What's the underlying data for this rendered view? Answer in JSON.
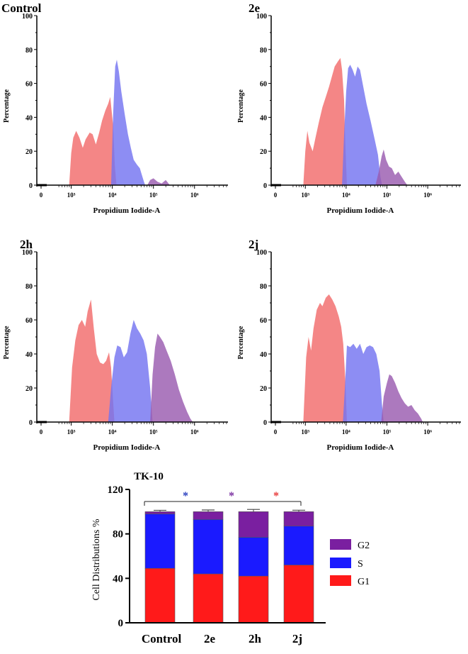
{
  "chart_data": [
    {
      "type": "area",
      "panel": "Control",
      "title": "Control",
      "xlabel": "Propidium Iodide-A",
      "ylabel": "Percentage",
      "x_scale": "log10",
      "x_ticks": [
        "0",
        "10³",
        "10⁴",
        "10⁵",
        "10⁶"
      ],
      "y_ticks": [
        "0",
        "20",
        "40",
        "60",
        "80",
        "100"
      ],
      "ylim": [
        0,
        100
      ],
      "series": [
        {
          "name": "G1",
          "color": "#f26b6b",
          "points": [
            [
              2.95,
              0
            ],
            [
              3.0,
              19
            ],
            [
              3.05,
              28
            ],
            [
              3.12,
              32
            ],
            [
              3.2,
              28
            ],
            [
              3.28,
              22
            ],
            [
              3.35,
              27
            ],
            [
              3.45,
              31
            ],
            [
              3.52,
              30
            ],
            [
              3.6,
              24
            ],
            [
              3.68,
              31
            ],
            [
              3.75,
              38
            ],
            [
              3.83,
              44
            ],
            [
              3.9,
              48
            ],
            [
              3.95,
              52
            ],
            [
              4.02,
              35
            ],
            [
              4.06,
              12
            ],
            [
              4.1,
              0
            ]
          ]
        },
        {
          "name": "S",
          "color": "#7474f0",
          "points": [
            [
              3.97,
              0
            ],
            [
              4.02,
              42
            ],
            [
              4.07,
              70
            ],
            [
              4.11,
              74
            ],
            [
              4.16,
              67
            ],
            [
              4.22,
              55
            ],
            [
              4.3,
              42
            ],
            [
              4.38,
              30
            ],
            [
              4.45,
              22
            ],
            [
              4.52,
              15
            ],
            [
              4.6,
              12
            ],
            [
              4.67,
              10
            ],
            [
              4.72,
              6
            ],
            [
              4.77,
              2
            ],
            [
              4.8,
              0
            ]
          ]
        },
        {
          "name": "G2",
          "color": "#9a5bb0",
          "points": [
            [
              4.85,
              0
            ],
            [
              4.92,
              3
            ],
            [
              5.0,
              4
            ],
            [
              5.1,
              2
            ],
            [
              5.2,
              1
            ],
            [
              5.3,
              3
            ],
            [
              5.4,
              0
            ]
          ]
        }
      ]
    },
    {
      "type": "area",
      "panel": "2e",
      "title": "2e",
      "xlabel": "Propidium Iodide-A",
      "ylabel": "Percentage",
      "x_scale": "log10",
      "x_ticks": [
        "0",
        "10³",
        "10⁴",
        "10⁵",
        "10⁶"
      ],
      "y_ticks": [
        "0",
        "20",
        "40",
        "60",
        "80",
        "100"
      ],
      "ylim": [
        0,
        100
      ],
      "series": [
        {
          "name": "G1",
          "color": "#f26b6b",
          "points": [
            [
              2.95,
              0
            ],
            [
              3.0,
              20
            ],
            [
              3.05,
              32
            ],
            [
              3.1,
              25
            ],
            [
              3.18,
              20
            ],
            [
              3.25,
              28
            ],
            [
              3.33,
              37
            ],
            [
              3.42,
              46
            ],
            [
              3.5,
              52
            ],
            [
              3.58,
              58
            ],
            [
              3.65,
              64
            ],
            [
              3.72,
              70
            ],
            [
              3.8,
              73
            ],
            [
              3.86,
              75
            ],
            [
              3.9,
              68
            ],
            [
              3.95,
              50
            ],
            [
              3.98,
              25
            ],
            [
              4.02,
              0
            ]
          ]
        },
        {
          "name": "S",
          "color": "#7474f0",
          "points": [
            [
              3.9,
              0
            ],
            [
              3.95,
              30
            ],
            [
              4.0,
              55
            ],
            [
              4.05,
              69
            ],
            [
              4.1,
              71
            ],
            [
              4.16,
              68
            ],
            [
              4.22,
              64
            ],
            [
              4.28,
              70
            ],
            [
              4.34,
              68
            ],
            [
              4.42,
              58
            ],
            [
              4.5,
              48
            ],
            [
              4.6,
              38
            ],
            [
              4.7,
              27
            ],
            [
              4.78,
              18
            ],
            [
              4.84,
              5
            ],
            [
              4.88,
              0
            ]
          ]
        },
        {
          "name": "G2",
          "color": "#9a5bb0",
          "points": [
            [
              4.72,
              0
            ],
            [
              4.8,
              8
            ],
            [
              4.87,
              17
            ],
            [
              4.92,
              21
            ],
            [
              4.98,
              15
            ],
            [
              5.05,
              11
            ],
            [
              5.12,
              10
            ],
            [
              5.2,
              6
            ],
            [
              5.28,
              8
            ],
            [
              5.36,
              5
            ],
            [
              5.44,
              2
            ],
            [
              5.5,
              0
            ]
          ]
        }
      ]
    },
    {
      "type": "area",
      "panel": "2h",
      "title": "2h",
      "xlabel": "Propidium Iodide-A",
      "ylabel": "Percentage",
      "x_scale": "log10",
      "x_ticks": [
        "0",
        "10³",
        "10⁴",
        "10⁵",
        "10⁶"
      ],
      "y_ticks": [
        "0",
        "20",
        "40",
        "60",
        "80",
        "100"
      ],
      "ylim": [
        0,
        100
      ],
      "series": [
        {
          "name": "G1",
          "color": "#f26b6b",
          "points": [
            [
              2.95,
              0
            ],
            [
              3.02,
              32
            ],
            [
              3.1,
              48
            ],
            [
              3.18,
              57
            ],
            [
              3.26,
              60
            ],
            [
              3.34,
              56
            ],
            [
              3.4,
              65
            ],
            [
              3.48,
              72
            ],
            [
              3.55,
              55
            ],
            [
              3.62,
              40
            ],
            [
              3.7,
              35
            ],
            [
              3.78,
              34
            ],
            [
              3.85,
              36
            ],
            [
              3.92,
              41
            ],
            [
              3.97,
              32
            ],
            [
              4.02,
              12
            ],
            [
              4.05,
              0
            ]
          ]
        },
        {
          "name": "S",
          "color": "#7474f0",
          "points": [
            [
              3.9,
              0
            ],
            [
              3.97,
              20
            ],
            [
              4.05,
              38
            ],
            [
              4.12,
              45
            ],
            [
              4.2,
              44
            ],
            [
              4.28,
              38
            ],
            [
              4.36,
              41
            ],
            [
              4.44,
              52
            ],
            [
              4.52,
              60
            ],
            [
              4.6,
              55
            ],
            [
              4.68,
              52
            ],
            [
              4.76,
              48
            ],
            [
              4.84,
              40
            ],
            [
              4.92,
              20
            ],
            [
              4.98,
              0
            ]
          ]
        },
        {
          "name": "G2",
          "color": "#9a5bb0",
          "points": [
            [
              4.92,
              0
            ],
            [
              4.98,
              28
            ],
            [
              5.04,
              44
            ],
            [
              5.1,
              52
            ],
            [
              5.16,
              50
            ],
            [
              5.24,
              47
            ],
            [
              5.32,
              42
            ],
            [
              5.42,
              36
            ],
            [
              5.52,
              28
            ],
            [
              5.62,
              19
            ],
            [
              5.72,
              12
            ],
            [
              5.82,
              6
            ],
            [
              5.9,
              2
            ],
            [
              5.96,
              0
            ]
          ]
        }
      ]
    },
    {
      "type": "area",
      "panel": "2j",
      "title": "2j",
      "xlabel": "Propidium Iodide-A",
      "ylabel": "Percentage",
      "x_scale": "log10",
      "x_ticks": [
        "0",
        "10³",
        "10⁴",
        "10⁵",
        "10⁶"
      ],
      "y_ticks": [
        "0",
        "20",
        "40",
        "60",
        "80",
        "100"
      ],
      "ylim": [
        0,
        100
      ],
      "series": [
        {
          "name": "G1",
          "color": "#f26b6b",
          "points": [
            [
              2.95,
              0
            ],
            [
              3.02,
              38
            ],
            [
              3.08,
              50
            ],
            [
              3.14,
              42
            ],
            [
              3.2,
              55
            ],
            [
              3.28,
              66
            ],
            [
              3.36,
              70
            ],
            [
              3.42,
              68
            ],
            [
              3.5,
              73
            ],
            [
              3.58,
              75
            ],
            [
              3.66,
              72
            ],
            [
              3.74,
              68
            ],
            [
              3.82,
              62
            ],
            [
              3.88,
              56
            ],
            [
              3.93,
              46
            ],
            [
              3.98,
              25
            ],
            [
              4.02,
              0
            ]
          ]
        },
        {
          "name": "S",
          "color": "#7474f0",
          "points": [
            [
              3.92,
              0
            ],
            [
              3.97,
              20
            ],
            [
              4.02,
              45
            ],
            [
              4.1,
              44
            ],
            [
              4.18,
              46
            ],
            [
              4.26,
              43
            ],
            [
              4.34,
              46
            ],
            [
              4.42,
              40
            ],
            [
              4.5,
              44
            ],
            [
              4.58,
              45
            ],
            [
              4.66,
              44
            ],
            [
              4.74,
              40
            ],
            [
              4.82,
              30
            ],
            [
              4.88,
              10
            ],
            [
              4.92,
              0
            ]
          ]
        },
        {
          "name": "G2",
          "color": "#9a5bb0",
          "points": [
            [
              4.86,
              0
            ],
            [
              4.92,
              15
            ],
            [
              5.0,
              23
            ],
            [
              5.06,
              28
            ],
            [
              5.12,
              27
            ],
            [
              5.2,
              23
            ],
            [
              5.28,
              18
            ],
            [
              5.36,
              14
            ],
            [
              5.44,
              11
            ],
            [
              5.52,
              9
            ],
            [
              5.6,
              10
            ],
            [
              5.68,
              7
            ],
            [
              5.76,
              5
            ],
            [
              5.84,
              2
            ],
            [
              5.88,
              0
            ]
          ]
        }
      ]
    },
    {
      "type": "bar",
      "stacked": true,
      "title": "TK-10",
      "xlabel": "",
      "ylabel": "Cell Distributions %",
      "categories": [
        "Control",
        "2e",
        "2h",
        "2j"
      ],
      "ylim": [
        0,
        120
      ],
      "y_ticks": [
        "0",
        "40",
        "80",
        "120"
      ],
      "series": [
        {
          "name": "G1",
          "color": "#ff1a1a",
          "values": [
            49,
            44,
            42,
            52
          ]
        },
        {
          "name": "S",
          "color": "#1a1aff",
          "values": [
            49,
            49,
            35,
            35
          ]
        },
        {
          "name": "G2",
          "color": "#7a1fa0",
          "values": [
            2,
            7,
            23,
            13
          ]
        }
      ],
      "totals": [
        100,
        100,
        100,
        100
      ],
      "error_bars": [
        1.2,
        1.5,
        2,
        1.3
      ],
      "legend": [
        "G2",
        "S",
        "G1"
      ],
      "legend_position": "right",
      "significance": {
        "markers": [
          {
            "text": "*",
            "color": "#2a3fbf"
          },
          {
            "text": "*",
            "color": "#7a2fa0"
          },
          {
            "text": "*",
            "color": "#e83a3a"
          }
        ]
      }
    }
  ]
}
